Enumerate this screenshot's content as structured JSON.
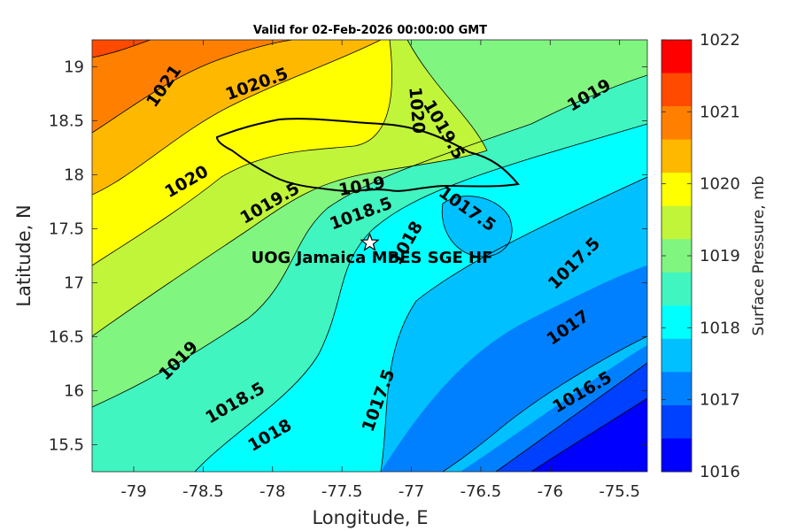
{
  "title": "Valid for 02-Feb-2026 00:00:00 GMT",
  "xlabel": "Longitude, E",
  "ylabel": "Latitude, N",
  "colorbar_label": "Surface Pressure, mb",
  "site_label": "UOG Jamaica MBES SGE HF",
  "x_ticks": [
    "-79",
    "-78.5",
    "-78",
    "-77.5",
    "-77",
    "-76.5",
    "-76",
    "-75.5"
  ],
  "y_ticks": [
    "19",
    "18.5",
    "18",
    "17.5",
    "17",
    "16.5",
    "16",
    "15.5"
  ],
  "colorbar_ticks": [
    "1022",
    "1021",
    "1020",
    "1019",
    "1018",
    "1017",
    "1016"
  ],
  "colorbar_colors": [
    "#ff0000",
    "#ff4a00",
    "#ff8000",
    "#ffb800",
    "#ffff00",
    "#c0f53a",
    "#80f580",
    "#40f5c0",
    "#00ffff",
    "#00c0ff",
    "#0080ff",
    "#0040ff",
    "#0000ff"
  ],
  "contour_labels": [
    {
      "text": "1021",
      "lon": -78.75,
      "lat": 18.85,
      "angle": -55
    },
    {
      "text": "1020.5",
      "lon": -78.1,
      "lat": 18.85,
      "angle": -20
    },
    {
      "text": "1020",
      "lon": -77.0,
      "lat": 18.65,
      "angle": 85
    },
    {
      "text": "1019.5",
      "lon": -76.8,
      "lat": 18.45,
      "angle": 60
    },
    {
      "text": "1019",
      "lon": -75.7,
      "lat": 18.75,
      "angle": -30
    },
    {
      "text": "1020",
      "lon": -78.6,
      "lat": 17.95,
      "angle": -30
    },
    {
      "text": "1019.5",
      "lon": -78.0,
      "lat": 17.75,
      "angle": -30
    },
    {
      "text": "1019",
      "lon": -77.35,
      "lat": 17.9,
      "angle": -10
    },
    {
      "text": "1018.5",
      "lon": -77.35,
      "lat": 17.65,
      "angle": -20
    },
    {
      "text": "1017.5",
      "lon": -76.62,
      "lat": 17.7,
      "angle": 35
    },
    {
      "text": "1018",
      "lon": -77.0,
      "lat": 17.4,
      "angle": -60
    },
    {
      "text": "1017.5",
      "lon": -75.8,
      "lat": 17.2,
      "angle": -45
    },
    {
      "text": "1017",
      "lon": -75.85,
      "lat": 16.6,
      "angle": -35
    },
    {
      "text": "1019",
      "lon": -78.65,
      "lat": 16.3,
      "angle": -45
    },
    {
      "text": "1018.5",
      "lon": -78.25,
      "lat": 15.9,
      "angle": -30
    },
    {
      "text": "1018",
      "lon": -78.0,
      "lat": 15.6,
      "angle": -30
    },
    {
      "text": "1017.5",
      "lon": -77.2,
      "lat": 15.95,
      "angle": -70
    },
    {
      "text": "1016.5",
      "lon": -75.75,
      "lat": 16.0,
      "angle": -30
    }
  ],
  "site": {
    "lon": -77.3,
    "lat": 17.37
  }
}
